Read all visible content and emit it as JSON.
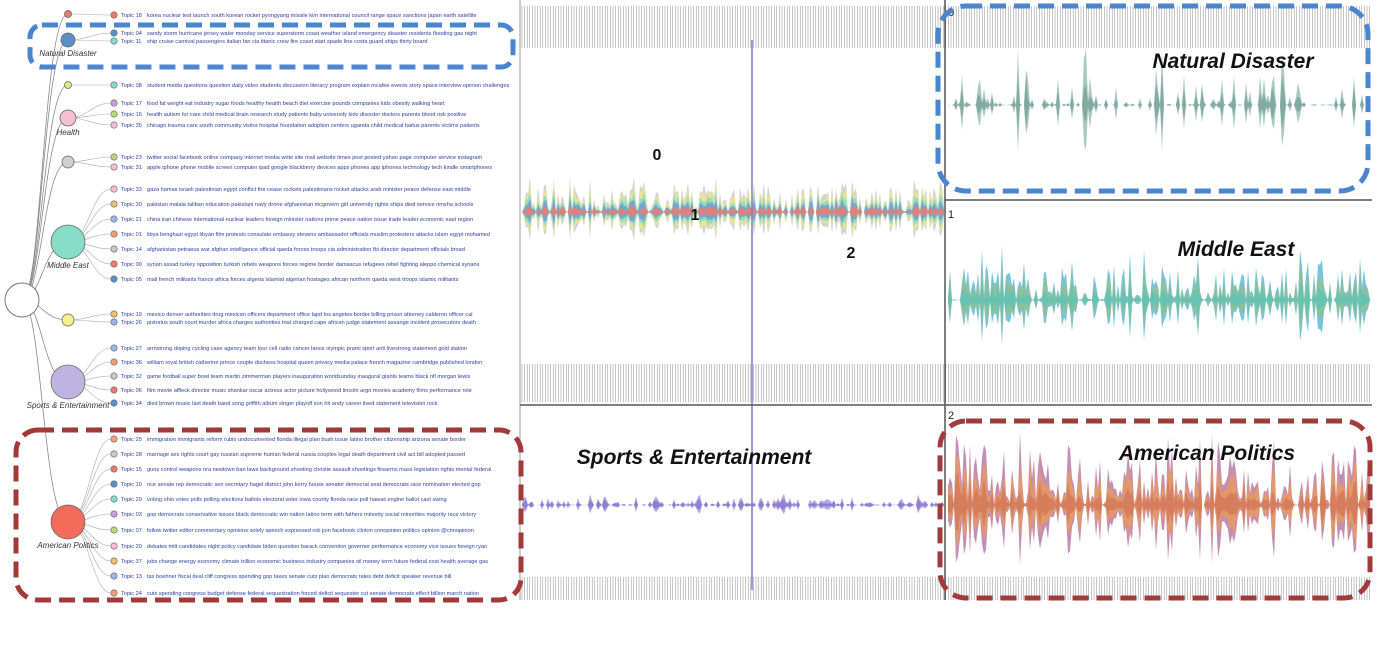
{
  "tree": {
    "groups": [
      {
        "topics": [
          {
            "id": "Topic 18",
            "words": "korea nuclear test launch south korean rocket pyongyang missile kim international council range space sanctions japan earth satellite"
          }
        ]
      },
      {
        "label": "Natural Disaster",
        "topics": [
          {
            "id": "Topic 04",
            "words": "sandy storm hurricane jersey water monday service superstorm coast weather island emergency disaster residents flooding gas night"
          },
          {
            "id": "Topic 11",
            "words": "ship cruise carnival passengers italian fan cia titanic crew fire coast start spade line costa guard ships thirty board"
          }
        ]
      },
      {
        "topics": [
          {
            "id": "Topic 08",
            "words": "student media questions question daily video students discussion literacy program explain mcafee events story space interview opinion challenges"
          }
        ]
      },
      {
        "label": "Health",
        "topics": [
          {
            "id": "Topic 17",
            "words": "food fat weight eat industry sugar foods healthy health beach diet exercise pounds companies kids obesity walking heart"
          },
          {
            "id": "Topic 16",
            "words": "health autism for care child medical brain research study patients baby university kids disorder doctors parents blood risk positive"
          },
          {
            "id": "Topic 35",
            "words": "chicago trauma care south community visitor hospital foundation adoption centers uganda child medical haitus parents victims patients"
          }
        ]
      },
      {
        "topics": [
          {
            "id": "Topic 23",
            "words": "twitter social facebook online company internet media write site mail website times post posted yahoo page computer service instagram"
          },
          {
            "id": "Topic 31",
            "words": "apple iphone phone mobile screen computer ipad google blackberry devices apps phones app iphones technology tech kindle smartphones"
          }
        ]
      },
      {
        "label": "Middle East",
        "topics": [
          {
            "id": "Topic 33",
            "words": "gaza hamas israeli palestinian egypt conflict fire cease rockets palestinians rocket attacks arab minister peace defense east middle"
          },
          {
            "id": "Topic 30",
            "words": "pakistan malala taliban education pakistani navy drone afghanistan mcgovern girl university rights ships died service rimsha schools"
          },
          {
            "id": "Topic 21",
            "words": "china iran chinese international nuclear leaders foreign minister nations prime peace nation issue trade leader economic east region"
          },
          {
            "id": "Topic 01",
            "words": "libya benghazi egypt libyan film protests consulate embassy stevens ambassador officials muslim protesters attacks islam egypt mohamed"
          },
          {
            "id": "Topic 14",
            "words": "afghanistan petraeus war afghan intelligence official qaeda forces troops cia administration fbi director department officials broad"
          },
          {
            "id": "Topic 00",
            "words": "syrian assad turkey opposition turkish rebels weapons forces regime border damascus refugees rebel fighting aleppo chemical syrians"
          },
          {
            "id": "Topic 05",
            "words": "mali french militants france africa forces algeria islamist algerian hostages african northern qaeda west troops islamic militants"
          }
        ]
      },
      {
        "topics": [
          {
            "id": "Topic 19",
            "words": "mexico denver authorities drug mexican officers department office lapd los angeles border billing prison attorney calderon officer cal"
          },
          {
            "id": "Topic 26",
            "words": "pistorius south court murder africa charges authorities trial charged cape african judge statement assange incident prosecutors death"
          }
        ]
      },
      {
        "label": "Sports & Entertainment",
        "topics": [
          {
            "id": "Topic 27",
            "words": "armstrong doping cycling case agency team tour cell radio cancer lance olympic prami sport anti livestrong statement gold station"
          },
          {
            "id": "Topic 36",
            "words": "william royal british catherine prince couple duchess hospital queen privacy media palace french magazine cambridge published london"
          },
          {
            "id": "Topic 32",
            "words": "game football super bowl team martin zimmerman players inauguration worldsunday inaugural giants teams black nfl morgan lewis"
          },
          {
            "id": "Topic 06",
            "words": "film movie affleck director music shankar oscar actress actor picture hollywood lincoln argo movies academy films performance role"
          },
          {
            "id": "Topic 34",
            "words": "died brown music last death band song griffith album singer playoff son hit andy career lived statement television rock"
          }
        ]
      },
      {
        "label": "American Politics",
        "topics": [
          {
            "id": "Topic 25",
            "words": "immigration immigrants reform rubio undocumented florida illegal plan bush issue latino brother citizenship arizona senate border"
          },
          {
            "id": "Topic 28",
            "words": "marriage sex rights court gay russian supreme human federal russia couples legal death department civil act bill adopted passed"
          },
          {
            "id": "Topic 15",
            "words": "guns control weapons nra newtown ban laws background shooting christie assault shootings firearms mass legislation rights mental federal"
          },
          {
            "id": "Topic 10",
            "words": "rice senate rep democratic sen secretary hagel district john kerry house senator democrat seat democrats race nomination elected gop"
          },
          {
            "id": "Topic 29",
            "words": "voting ohio votes polls polling elections ballots electoral voter iowa county florida race poll hawaii engine ballot cast swing"
          },
          {
            "id": "Topic 03",
            "words": "gop democrats conservative issues black democratic win nation latino term with fathers minority social minorities majority race victory"
          },
          {
            "id": "Topic 07",
            "words": "follow twitter editor commentary opinions solely speech expressed rob join facebook clinton cnnopinion politics opinion @cnnopinion"
          },
          {
            "id": "Topic 20",
            "words": "debates mitt candidates night policy candidate biden question barack convention governor performance economy vice issues foreign ryan"
          },
          {
            "id": "Topic 37",
            "words": "jobs change energy economy climate trillion economic business industry companies oil money term future federal cost health average gas"
          },
          {
            "id": "Topic 13",
            "words": "tax boehner fiscal deal cliff congress spending gop taxes senate cuts plan democrats rates debt deficit speaker revenue bill"
          },
          {
            "id": "Topic 24",
            "words": "cuts spending congress budget defense federal sequestration forced deficit sequester cut senate democrats effect billion march nation"
          }
        ]
      }
    ]
  },
  "stream": {
    "markers": [
      "0",
      "1",
      "2"
    ],
    "bottom_label": "Sports & Entertainment"
  },
  "panels": [
    {
      "number": "0",
      "label": "Natural Disaster"
    },
    {
      "number": "1",
      "label": "Middle East"
    },
    {
      "number": "2",
      "label": "American Politics"
    }
  ]
}
